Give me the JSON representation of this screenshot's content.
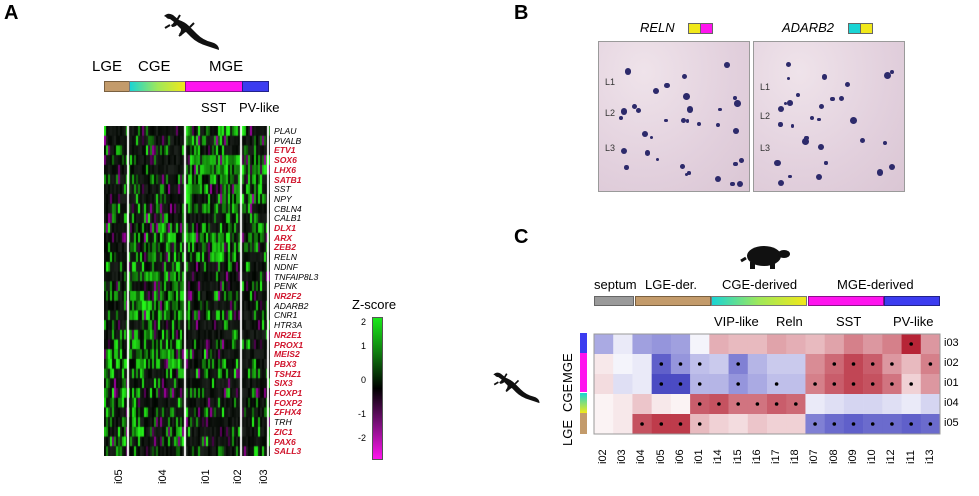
{
  "panels": {
    "a": "A",
    "b": "B",
    "c": "C"
  },
  "panelA": {
    "groups": [
      "LGE",
      "CGE",
      "MGE"
    ],
    "subgroups": [
      "SST",
      "PV-like"
    ],
    "genes": [
      {
        "name": "PLAU",
        "red": false
      },
      {
        "name": "PVALB",
        "red": false
      },
      {
        "name": "ETV1",
        "red": true
      },
      {
        "name": "SOX6",
        "red": true
      },
      {
        "name": "LHX6",
        "red": true
      },
      {
        "name": "SATB1",
        "red": true
      },
      {
        "name": "SST",
        "red": false
      },
      {
        "name": "NPY",
        "red": false
      },
      {
        "name": "CBLN4",
        "red": false
      },
      {
        "name": "CALB1",
        "red": false
      },
      {
        "name": "DLX1",
        "red": true
      },
      {
        "name": "ARX",
        "red": true
      },
      {
        "name": "ZEB2",
        "red": true
      },
      {
        "name": "RELN",
        "red": false
      },
      {
        "name": "NDNF",
        "red": false
      },
      {
        "name": "TNFAIP8L3",
        "red": false
      },
      {
        "name": "PENK",
        "red": false
      },
      {
        "name": "NR2F2",
        "red": true
      },
      {
        "name": "ADARB2",
        "red": false
      },
      {
        "name": "CNR1",
        "red": false
      },
      {
        "name": "HTR3A",
        "red": false
      },
      {
        "name": "NR2E1",
        "red": true
      },
      {
        "name": "PROX1",
        "red": true
      },
      {
        "name": "MEIS2",
        "red": true
      },
      {
        "name": "PBX3",
        "red": true
      },
      {
        "name": "TSHZ1",
        "red": true
      },
      {
        "name": "SIX3",
        "red": true
      },
      {
        "name": "FOXP1",
        "red": true
      },
      {
        "name": "FOXP2",
        "red": true
      },
      {
        "name": "ZFHX4",
        "red": true
      },
      {
        "name": "TRH",
        "red": false
      },
      {
        "name": "ZIC1",
        "red": true
      },
      {
        "name": "PAX6",
        "red": true
      },
      {
        "name": "SALL3",
        "red": true
      }
    ],
    "xlabels": [
      "i05",
      "i04",
      "i01",
      "i02",
      "i03"
    ],
    "zscore": {
      "title": "Z-score",
      "ticks": [
        "2",
        "1",
        "0",
        "-1",
        "-2"
      ]
    }
  },
  "panelB": {
    "genes": [
      "RELN",
      "ADARB2"
    ],
    "layers": [
      "L1",
      "L2",
      "L3"
    ]
  },
  "panelC": {
    "groups": [
      "septum",
      "LGE-der.",
      "CGE-derived",
      "MGE-derived"
    ],
    "subgroups": [
      "VIP-like",
      "Reln",
      "SST",
      "PV-like"
    ],
    "sidebar": [
      "LGE",
      "CGE",
      "MGE"
    ],
    "columns": [
      "i02",
      "i03",
      "i04",
      "i05",
      "i06",
      "i01",
      "i14",
      "i15",
      "i16",
      "i17",
      "i18",
      "i07",
      "i08",
      "i09",
      "i10",
      "i12",
      "i11",
      "i13"
    ],
    "rows": [
      "i03",
      "i02",
      "i01",
      "i04",
      "i05"
    ],
    "matrix": [
      [
        -0.4,
        -0.1,
        -0.45,
        -0.5,
        -0.45,
        -0.05,
        0.35,
        0.3,
        0.3,
        0.4,
        0.35,
        0.3,
        0.4,
        0.55,
        0.45,
        0.55,
        0.95,
        0.45
      ],
      [
        0.1,
        -0.05,
        -0.1,
        -0.75,
        -0.5,
        -0.3,
        -0.25,
        -0.6,
        -0.35,
        -0.25,
        -0.25,
        0.5,
        0.65,
        0.8,
        0.7,
        0.45,
        0.3,
        0.55
      ],
      [
        0.15,
        -0.15,
        -0.1,
        -0.85,
        -0.85,
        -0.35,
        -0.35,
        -0.5,
        -0.4,
        -0.3,
        -0.3,
        0.55,
        0.7,
        0.8,
        0.75,
        0.6,
        0.2,
        0.45
      ],
      [
        0.05,
        0.1,
        0.25,
        0.1,
        0.05,
        0.7,
        0.75,
        0.6,
        0.6,
        0.7,
        0.65,
        -0.1,
        -0.15,
        -0.2,
        -0.2,
        -0.15,
        -0.1,
        -0.2
      ],
      [
        0.05,
        0.1,
        0.75,
        0.85,
        0.85,
        0.3,
        0.2,
        0.15,
        0.25,
        0.2,
        0.2,
        -0.6,
        -0.7,
        -0.75,
        -0.7,
        -0.7,
        -0.75,
        -0.7
      ]
    ],
    "dots": [
      [
        0,
        0,
        0,
        0,
        0,
        0,
        0,
        0,
        0,
        0,
        0,
        0,
        0,
        0,
        0,
        0,
        1,
        0
      ],
      [
        0,
        0,
        0,
        1,
        1,
        1,
        0,
        1,
        0,
        0,
        0,
        0,
        1,
        1,
        1,
        1,
        0,
        1
      ],
      [
        0,
        0,
        0,
        1,
        1,
        1,
        0,
        1,
        0,
        1,
        0,
        1,
        1,
        1,
        1,
        1,
        1,
        0
      ],
      [
        0,
        0,
        0,
        0,
        0,
        1,
        1,
        1,
        1,
        1,
        1,
        0,
        0,
        0,
        0,
        0,
        0,
        0
      ],
      [
        0,
        0,
        1,
        1,
        1,
        1,
        0,
        0,
        0,
        0,
        0,
        1,
        1,
        1,
        1,
        1,
        1,
        1
      ]
    ]
  },
  "colors": {
    "lge": "#c39b6b",
    "mge": "#ff14ee",
    "pv": "#3c3cf0",
    "septum": "#9a9a9a",
    "red": "#d0142c",
    "heatHigh": "#b2182b",
    "heatLow": "#2b2bb8"
  }
}
